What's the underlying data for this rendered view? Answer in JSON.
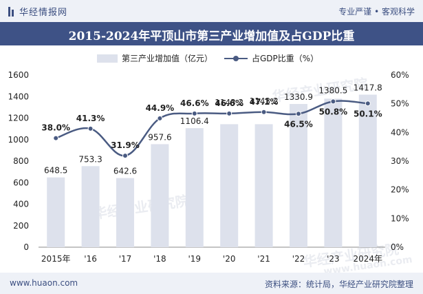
{
  "header": {
    "logo_text": "华经情报网",
    "tagline": "专业严谨 • 客观科学",
    "title": "2015-2024年平顶山市第三产业增加值及占GDP比重"
  },
  "legend": {
    "bar_label": "第三产业增加值（亿元）",
    "line_label": "占GDP比重（%）"
  },
  "watermarks": [
    "华经产业研究院",
    "华经产业研究院",
    "华经产业研究院",
    "www.huaon.com"
  ],
  "footer": {
    "url": "www.huaon.com",
    "source": "资料来源：统计局，华经产业研究院整理"
  },
  "chart_data": {
    "type": "bar",
    "categories": [
      "2015年",
      "'16",
      "'17",
      "'18",
      "'19",
      "'20",
      "'21",
      "'22",
      "'23",
      "2024年"
    ],
    "series": [
      {
        "name": "第三产业增加值（亿元）",
        "type": "bar",
        "axis": "left",
        "values": [
          648.5,
          753.3,
          642.6,
          957.6,
          1106.4,
          1143.2,
          1143.2,
          1330.9,
          1380.5,
          1417.8
        ],
        "labels": [
          "648.5",
          "753.3",
          "642.6",
          "957.6",
          "1106.4",
          "1143.2",
          "1143.2",
          "1330.9",
          "1380.5",
          "1417.8"
        ]
      },
      {
        "name": "占GDP比重（%）",
        "type": "line",
        "axis": "right",
        "values": [
          38.0,
          41.3,
          31.9,
          44.9,
          46.6,
          46.6,
          47.1,
          46.5,
          50.8,
          50.1
        ],
        "labels": [
          "38.0%",
          "41.3%",
          "31.9%",
          "44.9%",
          "46.6%",
          "46.6%",
          "47.1%",
          "46.5%",
          "50.8%",
          "50.1%"
        ]
      }
    ],
    "y_left": {
      "min": 0,
      "max": 1600,
      "ticks": [
        "0",
        "200",
        "400",
        "600",
        "800",
        "1000",
        "1200",
        "1400",
        "1600"
      ]
    },
    "y_right": {
      "min": 0,
      "max": 60,
      "ticks": [
        "0%",
        "10%",
        "20%",
        "30%",
        "40%",
        "50%",
        "60%"
      ]
    },
    "grid": false,
    "legend_position": "top",
    "colors": {
      "bar": "#dde1ec",
      "line": "#4a5b82",
      "text": "#222222"
    }
  }
}
